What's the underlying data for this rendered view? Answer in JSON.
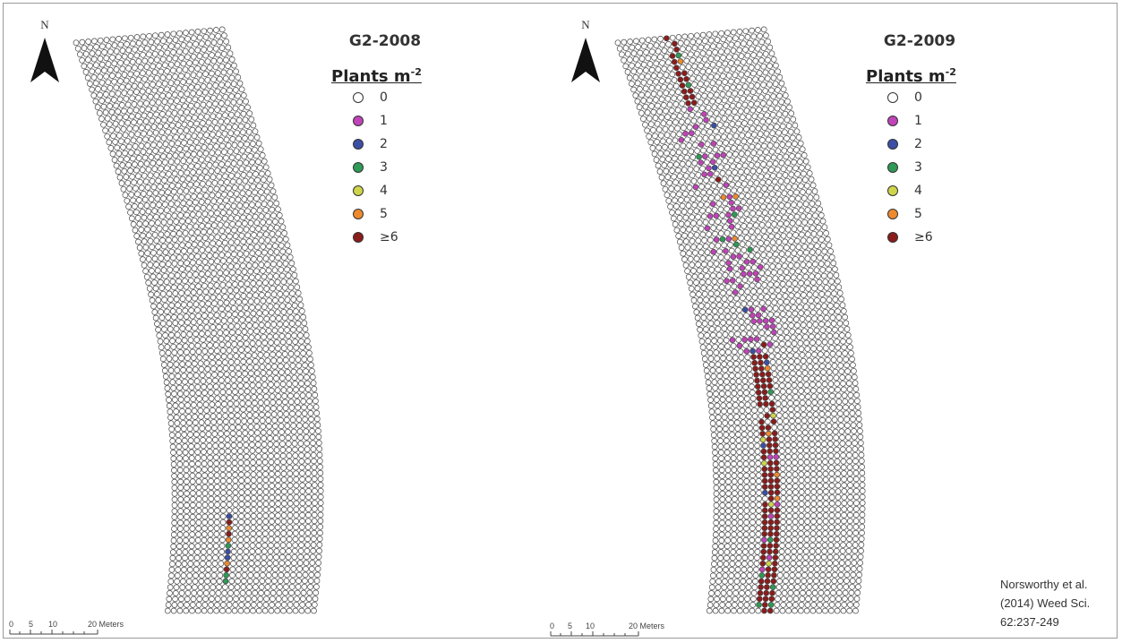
{
  "colors": {
    "level_0": "#ffffff",
    "level_1": "#c044b8",
    "level_2": "#3b4fa5",
    "level_3": "#2f9a56",
    "level_4": "#cfd54a",
    "level_5": "#ee8a2e",
    "level_6plus": "#8b1c1c",
    "cell_outline": "#444444"
  },
  "legend_heading_base": "Plants m",
  "legend_heading_exp": "-2",
  "legend_items": [
    {
      "value": "0",
      "color": "#ffffff"
    },
    {
      "value": "1",
      "color": "#c044b8"
    },
    {
      "value": "2",
      "color": "#3b4fa5"
    },
    {
      "value": "3",
      "color": "#2f9a56"
    },
    {
      "value": "4",
      "color": "#cfd54a"
    },
    {
      "value": "5",
      "color": "#ee8a2e"
    },
    {
      "value": "≥6",
      "color": "#8b1c1c"
    }
  ],
  "north_label": "N",
  "scale_labels": [
    "0",
    "5",
    "10",
    "20 Meters"
  ],
  "maps": [
    {
      "title": "G2-2008",
      "infestation": [
        {
          "row_from": 0.835,
          "row_to": 0.95,
          "col_center": 0.38,
          "width": 0.05,
          "dominant": "mixed",
          "density": 0.9
        }
      ]
    },
    {
      "title": "G2-2009",
      "infestation": [
        {
          "row_from": 0.0,
          "row_to": 0.12,
          "col_center": 0.35,
          "width": 0.07,
          "dominant": "6",
          "density": 0.8
        },
        {
          "row_from": 0.12,
          "row_to": 0.55,
          "col_center": 0.38,
          "width": 0.18,
          "dominant": "1",
          "density": 0.35
        },
        {
          "row_from": 0.55,
          "row_to": 1.0,
          "col_center": 0.38,
          "width": 0.1,
          "dominant": "6",
          "density": 0.95
        }
      ]
    }
  ],
  "citation": {
    "line1": "Norsworthy et al.",
    "line2": "(2014) Weed Sci.",
    "line3": "62:237-249"
  }
}
